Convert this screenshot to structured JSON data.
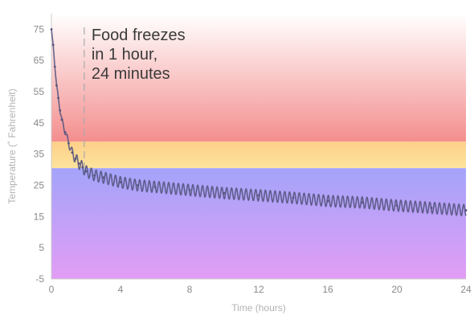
{
  "chart_data": {
    "type": "line",
    "title": "",
    "xlabel": "Time (hours)",
    "ylabel": "Temperature (˚ Fahrenheit)",
    "xlim": [
      0,
      24
    ],
    "ylim": [
      -5,
      80
    ],
    "xticks": [
      0,
      4,
      8,
      12,
      16,
      20,
      24
    ],
    "xtick_labels": [
      "0",
      "4",
      "8",
      "12",
      "16",
      "20",
      "24"
    ],
    "yticks": [
      -5,
      5,
      15,
      25,
      35,
      45,
      55,
      65,
      75
    ],
    "ytick_labels": [
      "-5",
      "5",
      "15",
      "25",
      "35",
      "45",
      "55",
      "65",
      "75"
    ],
    "grid": false,
    "legend": "none",
    "bands": [
      {
        "from": 39,
        "to": 80,
        "color_top": "#ffffff",
        "color_bottom": "#f48e8e"
      },
      {
        "from": 30.5,
        "to": 39,
        "color_top": "#fdcf8a",
        "color_bottom": "#fde49c"
      },
      {
        "from": -5,
        "to": 30.5,
        "color_top": "#a3a4fa",
        "color_bottom": "#e29df5"
      }
    ],
    "annotation": {
      "x": 1.9,
      "lines": [
        "Food freezes",
        "in 1 hour,",
        "24 minutes"
      ]
    },
    "series": [
      {
        "oscillation_amplitude": 1.8,
        "oscillation_period_hours": 0.28,
        "color": "#55557e",
        "x": [
          0,
          0.1,
          0.2,
          0.3,
          0.4,
          0.5,
          0.6,
          0.8,
          1.0,
          1.2,
          1.4,
          1.6,
          1.8,
          2.0,
          2.5,
          3,
          4,
          5,
          6,
          8,
          10,
          12,
          14,
          16,
          18,
          20,
          22,
          24
        ],
        "y": [
          75,
          70,
          63,
          57,
          53,
          49,
          46,
          42,
          38.5,
          35.5,
          33.5,
          32,
          30.8,
          29.5,
          28.2,
          27.5,
          26,
          25,
          24.5,
          23.5,
          22.5,
          21.8,
          21,
          20,
          19.5,
          18.5,
          17.8,
          17
        ]
      }
    ]
  }
}
